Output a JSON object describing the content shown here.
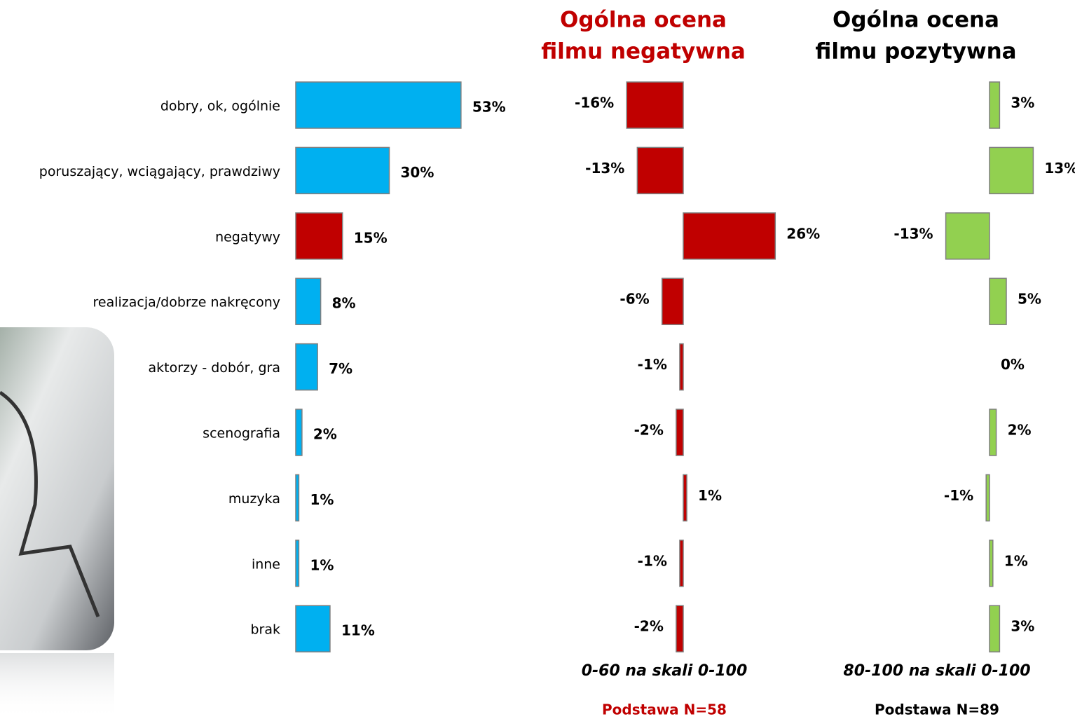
{
  "chart_data": [
    {
      "type": "bar",
      "orientation": "horizontal",
      "categories": [
        "dobry, ok, ogólnie",
        "poruszający, wciągający, prawdziwy",
        "negatywy",
        "realizacja/dobrze nakręcony",
        "aktorzy - dobór, gra",
        "scenografia",
        "muzyka",
        "inne",
        "brak"
      ],
      "values": [
        53,
        30,
        15,
        8,
        7,
        2,
        1,
        1,
        11
      ],
      "value_labels": [
        "53%",
        "30%",
        "15%",
        "8%",
        "7%",
        "2%",
        "1%",
        "1%",
        "11%"
      ],
      "colors": [
        "#00b0f0",
        "#00b0f0",
        "#c00000",
        "#00b0f0",
        "#00b0f0",
        "#00b0f0",
        "#00b0f0",
        "#00b0f0",
        "#00b0f0"
      ]
    },
    {
      "type": "bar",
      "orientation": "horizontal",
      "title": [
        "Ogólna ocena",
        "filmu negatywna"
      ],
      "title_color": "#c00000",
      "values": [
        -16,
        -13,
        26,
        -6,
        -1,
        -2,
        1,
        -1,
        -2
      ],
      "value_labels": [
        "-16%",
        "-13%",
        "26%",
        "-6%",
        "-1%",
        "-2%",
        "1%",
        "-1%",
        "-2%"
      ],
      "color": "#c00000",
      "subtitle": "0-60 na skali 0-100",
      "note": "Podstawa N=58"
    },
    {
      "type": "bar",
      "orientation": "horizontal",
      "title": [
        "Ogólna ocena",
        "filmu pozytywna"
      ],
      "title_color": "#000000",
      "values": [
        3,
        13,
        -13,
        5,
        0,
        2,
        -1,
        1,
        3
      ],
      "value_labels": [
        "3%",
        "13%",
        "-13%",
        "5%",
        "0%",
        "2%",
        "-1%",
        "1%",
        "3%"
      ],
      "color": "#92d050",
      "subtitle": "80-100 na skali 0-100",
      "note": "Podstawa N=89"
    }
  ]
}
